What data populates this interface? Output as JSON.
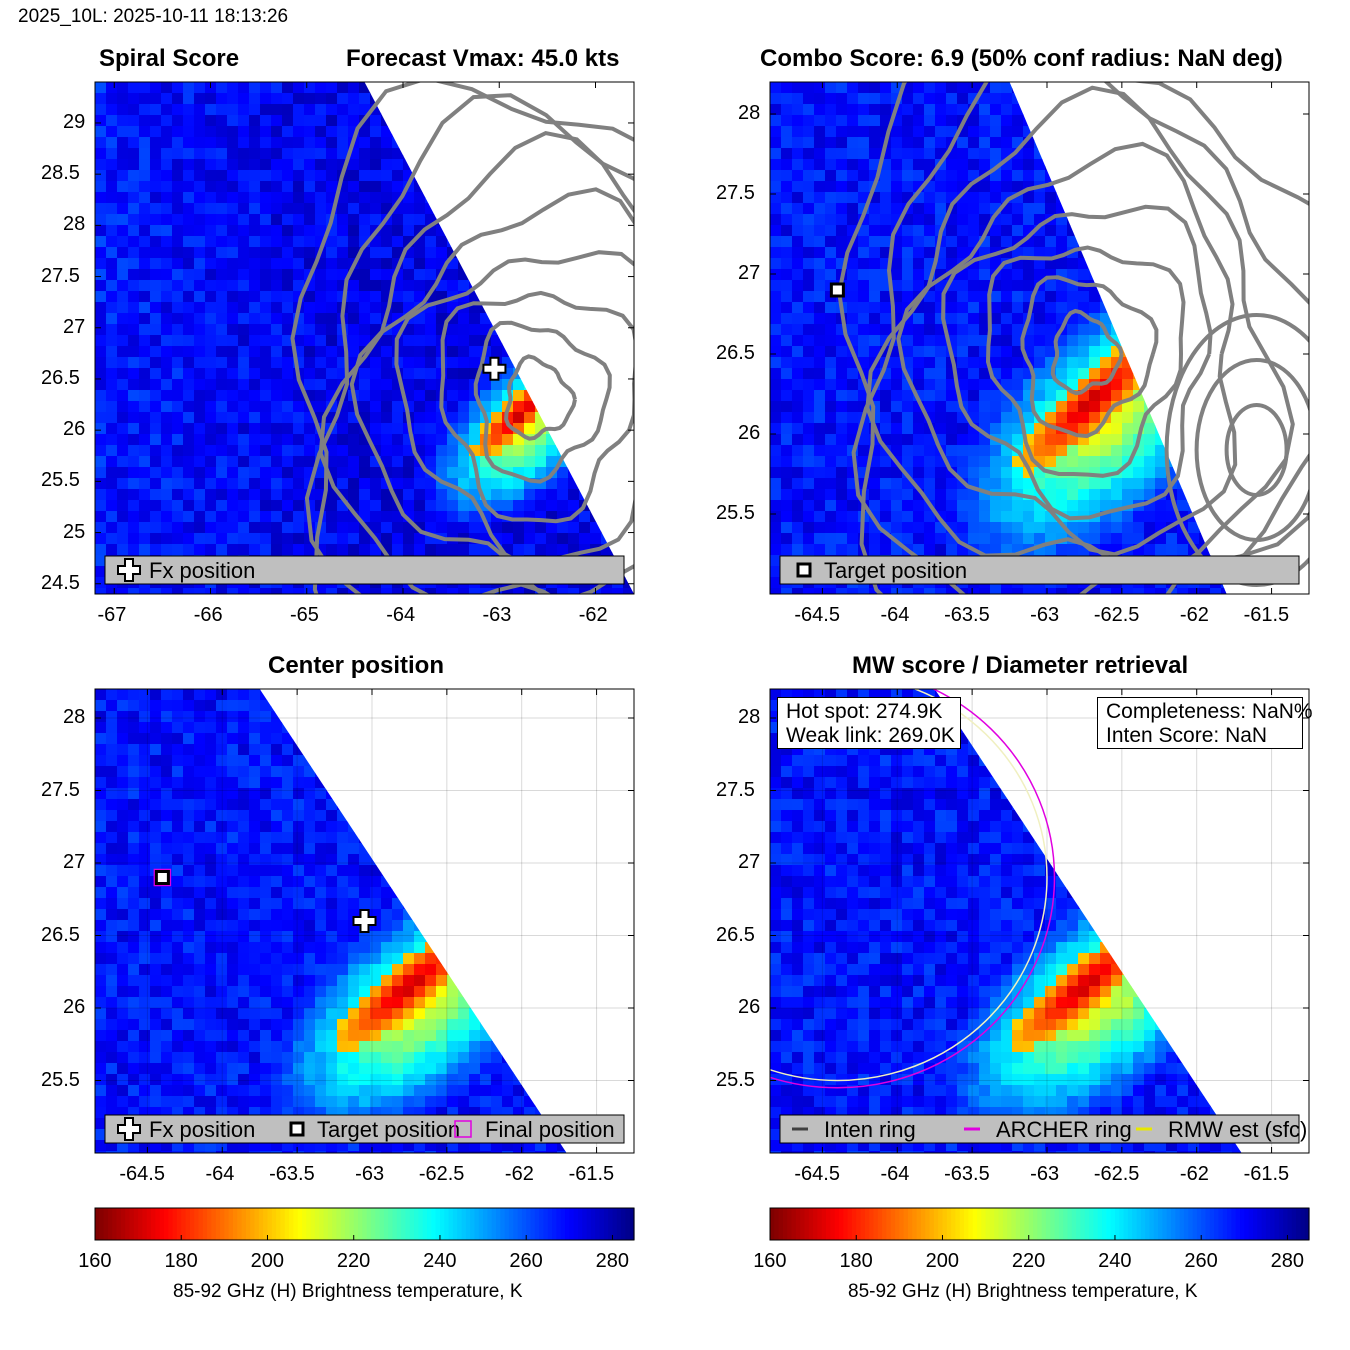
{
  "header": {
    "suptitle": "2025_10L: 2025-10-11 18:13:26"
  },
  "colors": {
    "contour": "#808080",
    "final_marker": "#e000e0",
    "archer_ring": "#e000e0",
    "rmw_ring": "#e8e800",
    "inten_ring": "#404040",
    "legend_bg": "#bfbfbf"
  },
  "colorbar": {
    "label": "85-92 GHz (H) Brightness temperature, K",
    "range": [
      160,
      285
    ],
    "ticks": [
      "160",
      "180",
      "200",
      "220",
      "240",
      "260",
      "280"
    ],
    "colormap": "jet-reversed"
  },
  "chart_data": [
    {
      "id": "spiral",
      "type": "heatmap",
      "title_left": "Spiral Score",
      "title_right": "Forecast Vmax: 45.0 kts",
      "xlim": [
        -67.2,
        -61.6
      ],
      "ylim": [
        24.4,
        29.4
      ],
      "xticks": [
        "-67",
        "-66",
        "-65",
        "-64",
        "-63",
        "-62"
      ],
      "yticks": [
        "24.5",
        "25",
        "25.5",
        "26",
        "26.5",
        "27",
        "27.5",
        "28",
        "28.5",
        "29"
      ],
      "swath_edge": [
        [
          -64.4,
          29.4
        ],
        [
          -61.6,
          24.4
        ]
      ],
      "cold_core": {
        "lon": -62.8,
        "lat": 26.15,
        "min_tb": 165
      },
      "fx_position": {
        "lon": -63.05,
        "lat": 26.6
      },
      "contour_center": {
        "lon": -62.6,
        "lat": 26.3
      },
      "legend": [
        {
          "marker": "plus",
          "label": "Fx position"
        }
      ]
    },
    {
      "id": "combo",
      "type": "heatmap",
      "title": "Combo Score: 6.9  (50% conf radius: NaN deg)",
      "xlim": [
        -64.85,
        -61.25
      ],
      "ylim": [
        25.0,
        28.2
      ],
      "xticks": [
        "-64.5",
        "-64",
        "-63.5",
        "-63",
        "-62.5",
        "-62",
        "-61.5"
      ],
      "yticks": [
        "25.5",
        "26",
        "26.5",
        "27",
        "27.5",
        "28"
      ],
      "swath_edge": [
        [
          -63.25,
          28.2
        ],
        [
          -61.8,
          25.0
        ]
      ],
      "cold_core": {
        "lon": -62.7,
        "lat": 26.2,
        "min_tb": 165
      },
      "target_position": {
        "lon": -64.4,
        "lat": 26.9
      },
      "legend": [
        {
          "marker": "square",
          "label": "Target position"
        }
      ]
    },
    {
      "id": "center",
      "type": "heatmap",
      "title": "Center position",
      "xlim": [
        -64.85,
        -61.25
      ],
      "ylim": [
        25.0,
        28.2
      ],
      "xticks": [
        "-64.5",
        "-64",
        "-63.5",
        "-63",
        "-62.5",
        "-62",
        "-61.5"
      ],
      "yticks": [
        "25.5",
        "26",
        "26.5",
        "27",
        "27.5",
        "28"
      ],
      "grid": true,
      "swath_edge": [
        [
          -63.75,
          28.2
        ],
        [
          -61.7,
          25.0
        ]
      ],
      "cold_core": {
        "lon": -62.75,
        "lat": 26.15,
        "min_tb": 165
      },
      "fx_position": {
        "lon": -63.05,
        "lat": 26.6
      },
      "target_position": {
        "lon": -64.4,
        "lat": 26.9
      },
      "final_position": {
        "lon": -64.4,
        "lat": 26.9
      },
      "legend": [
        {
          "marker": "plus",
          "label": "Fx position"
        },
        {
          "marker": "square",
          "label": "Target position"
        },
        {
          "marker": "magenta-square",
          "label": "Final position"
        }
      ]
    },
    {
      "id": "mw",
      "type": "heatmap",
      "title": "MW score / Diameter retrieval",
      "xlim": [
        -64.85,
        -61.25
      ],
      "ylim": [
        25.0,
        28.2
      ],
      "xticks": [
        "-64.5",
        "-64",
        "-63.5",
        "-63",
        "-62.5",
        "-62",
        "-61.5"
      ],
      "yticks": [
        "25.5",
        "26",
        "26.5",
        "27",
        "27.5",
        "28"
      ],
      "grid": true,
      "swath_edge": [
        [
          -63.75,
          28.2
        ],
        [
          -61.7,
          25.0
        ]
      ],
      "cold_core": {
        "lon": -62.75,
        "lat": 26.15,
        "min_tb": 165
      },
      "hot_spot": "Hot spot: 274.9K",
      "weak_link": "Weak link: 269.0K",
      "completeness": "Completeness: NaN%",
      "inten_score": "Inten Score: NaN",
      "archer_ring": {
        "lon": -64.4,
        "lat": 26.9,
        "radius_deg": 1.45
      },
      "rmw_ring": {
        "lon": -64.4,
        "lat": 26.9,
        "radius_deg": 1.4
      },
      "legend": [
        {
          "marker": "dark-line",
          "label": "Inten ring"
        },
        {
          "marker": "magenta-line",
          "label": "ARCHER ring"
        },
        {
          "marker": "yellow-line",
          "label": "RMW est (sfc)"
        }
      ]
    }
  ]
}
